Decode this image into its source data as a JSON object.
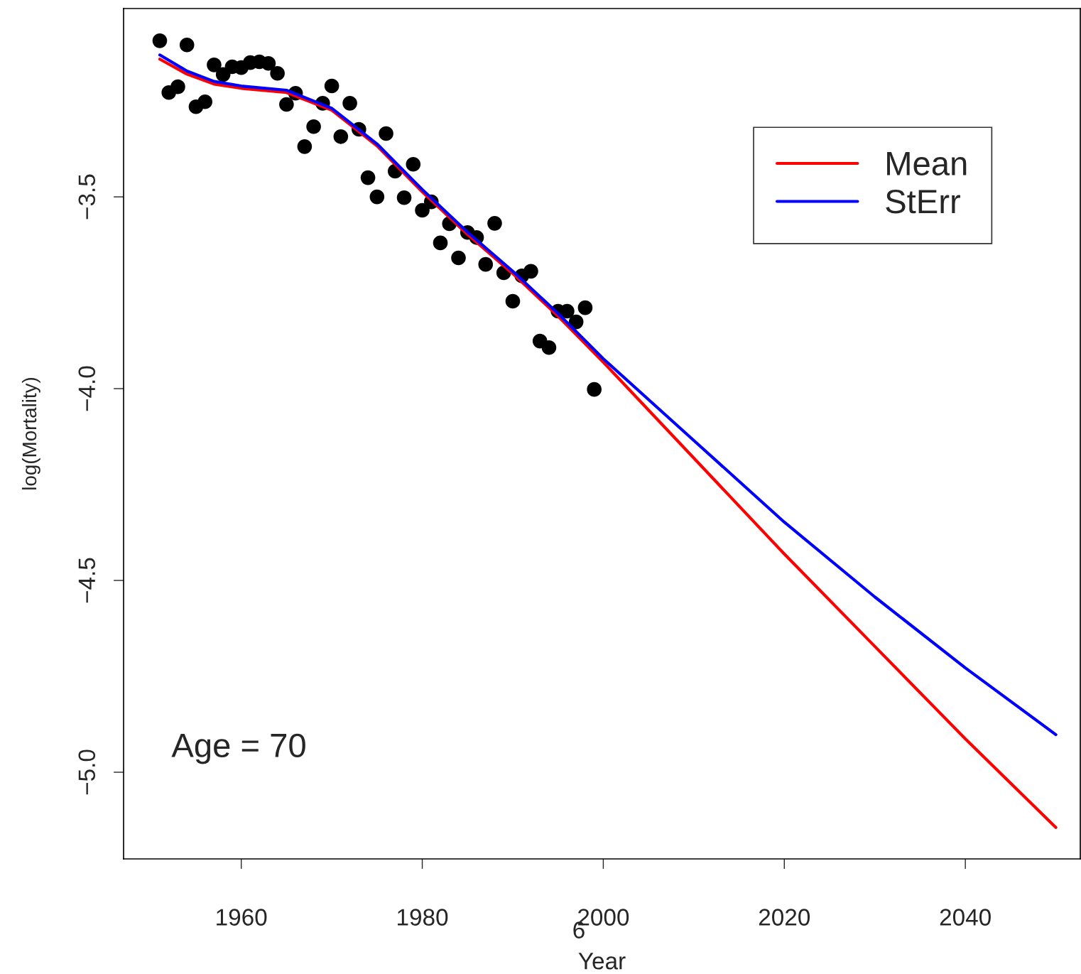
{
  "chart_data": {
    "type": "scatter",
    "xlabel": "Year",
    "ylabel": "log(Mortality)",
    "xlim": [
      1947,
      2052.7
    ],
    "ylim": [
      -5.226,
      -3.009
    ],
    "xticks": [
      1960,
      1980,
      2000,
      2020,
      2040
    ],
    "yticks": [
      {
        "value": -3.5,
        "label": "−3.5"
      },
      {
        "value": -4.0,
        "label": "−4.0"
      },
      {
        "value": -4.5,
        "label": "−4.5"
      },
      {
        "value": -5.0,
        "label": "−5.0"
      }
    ],
    "grid": false,
    "legend": "top right",
    "annotations": [
      "Age = 70",
      "6"
    ],
    "series": [
      {
        "color": "#000000",
        "marker": "circle",
        "x": [
          1951,
          1952,
          1953,
          1954,
          1955,
          1956,
          1957,
          1958,
          1959,
          1960,
          1961,
          1962,
          1963,
          1964,
          1965,
          1966,
          1967,
          1968,
          1969,
          1970,
          1971,
          1972,
          1973,
          1974,
          1975,
          1976,
          1977,
          1978,
          1979,
          1980,
          1981,
          1982,
          1983,
          1984,
          1985,
          1986,
          1987,
          1988,
          1989,
          1990,
          1991,
          1992,
          1993,
          1994,
          1995,
          1996,
          1997,
          1998,
          1999
        ],
        "values": [
          -3.093,
          -3.228,
          -3.213,
          -3.104,
          -3.265,
          -3.252,
          -3.156,
          -3.181,
          -3.161,
          -3.163,
          -3.15,
          -3.148,
          -3.152,
          -3.178,
          -3.259,
          -3.23,
          -3.369,
          -3.317,
          -3.256,
          -3.211,
          -3.343,
          -3.256,
          -3.324,
          -3.45,
          -3.5,
          -3.335,
          -3.433,
          -3.502,
          -3.415,
          -3.535,
          -3.513,
          -3.62,
          -3.57,
          -3.659,
          -3.593,
          -3.606,
          -3.676,
          -3.569,
          -3.698,
          -3.772,
          -3.706,
          -3.694,
          -3.876,
          -3.893,
          -3.798,
          -3.798,
          -3.826,
          -3.789,
          -4.002
        ]
      },
      {
        "type": "line",
        "name": "Mean",
        "color": "#ff0000",
        "line_style": "solid",
        "x": [
          1951,
          1954,
          1957,
          1960,
          1965,
          1970,
          1975,
          1980,
          1985,
          1990,
          1995,
          2000,
          2010,
          2020,
          2030,
          2040,
          2050
        ],
        "values": [
          -3.141,
          -3.18,
          -3.206,
          -3.217,
          -3.228,
          -3.274,
          -3.367,
          -3.487,
          -3.598,
          -3.7,
          -3.811,
          -3.931,
          -4.181,
          -4.431,
          -4.672,
          -4.913,
          -5.144
        ]
      },
      {
        "type": "line",
        "name": "StErr",
        "color": "#0000ff",
        "line_style": "solid",
        "x": [
          1951,
          1954,
          1957,
          1960,
          1965,
          1970,
          1975,
          1980,
          1985,
          1990,
          1995,
          2000,
          2010,
          2020,
          2030,
          2040,
          2050
        ],
        "values": [
          -3.13,
          -3.172,
          -3.199,
          -3.211,
          -3.222,
          -3.269,
          -3.362,
          -3.481,
          -3.592,
          -3.694,
          -3.804,
          -3.922,
          -4.135,
          -4.348,
          -4.543,
          -4.728,
          -4.902
        ]
      }
    ]
  }
}
